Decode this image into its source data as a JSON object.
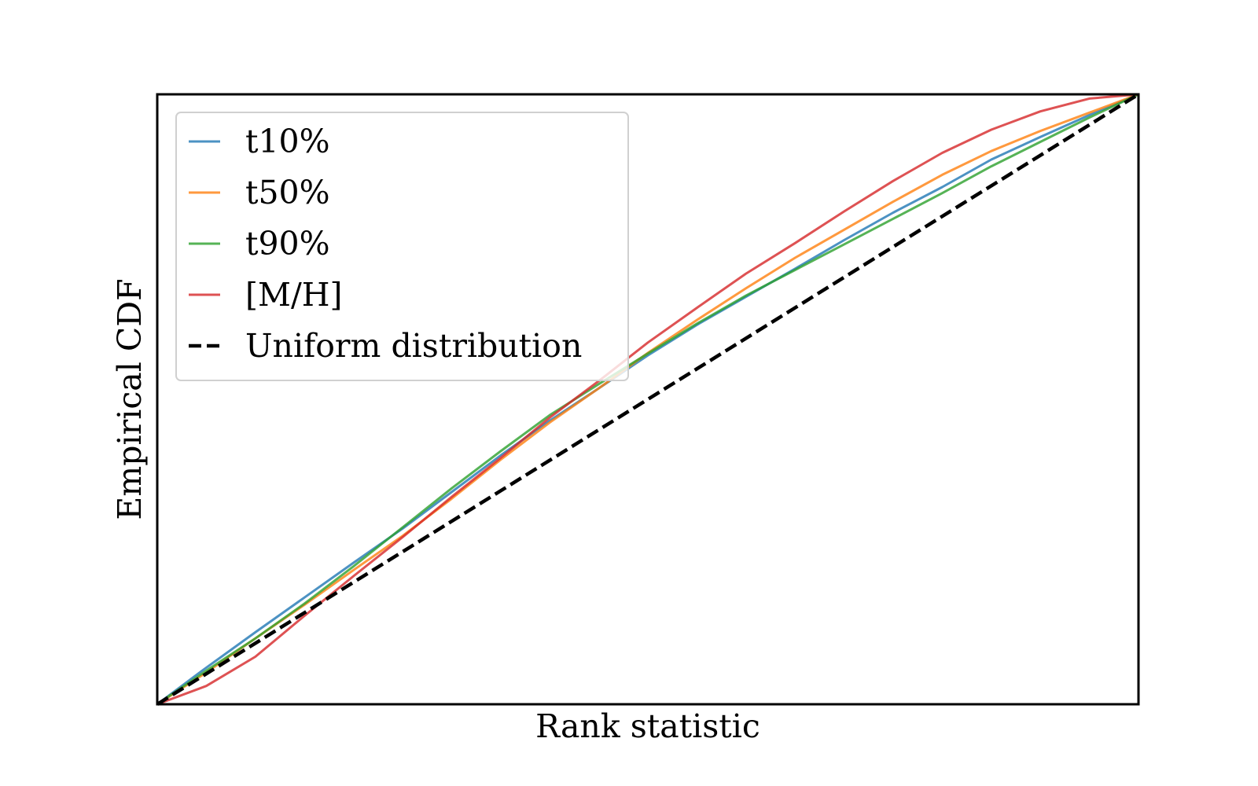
{
  "chart_data": {
    "type": "line",
    "title": "",
    "xlabel": "Rank statistic",
    "ylabel": "Empirical CDF",
    "xlim": [
      0,
      1
    ],
    "ylim": [
      0,
      1
    ],
    "grid": false,
    "ticks": false,
    "legend_position": "upper-left",
    "series": [
      {
        "name": "t10%",
        "color": "#1f77b4",
        "style": "solid",
        "x": [
          0,
          0.05,
          0.1,
          0.15,
          0.2,
          0.25,
          0.3,
          0.35,
          0.4,
          0.45,
          0.5,
          0.55,
          0.6,
          0.65,
          0.7,
          0.75,
          0.8,
          0.85,
          0.9,
          0.95,
          1.0
        ],
        "y": [
          0,
          0.06,
          0.118,
          0.175,
          0.232,
          0.288,
          0.348,
          0.408,
          0.465,
          0.518,
          0.572,
          0.622,
          0.668,
          0.714,
          0.761,
          0.806,
          0.848,
          0.893,
          0.93,
          0.966,
          1.0
        ]
      },
      {
        "name": "t50%",
        "color": "#ff7f0e",
        "style": "solid",
        "x": [
          0,
          0.05,
          0.1,
          0.15,
          0.2,
          0.25,
          0.3,
          0.35,
          0.4,
          0.45,
          0.5,
          0.55,
          0.6,
          0.65,
          0.7,
          0.75,
          0.8,
          0.85,
          0.9,
          0.95,
          1.0
        ],
        "y": [
          0,
          0.052,
          0.108,
          0.163,
          0.22,
          0.276,
          0.337,
          0.401,
          0.462,
          0.518,
          0.576,
          0.63,
          0.682,
          0.732,
          0.778,
          0.824,
          0.868,
          0.907,
          0.94,
          0.97,
          1.0
        ]
      },
      {
        "name": "t90%",
        "color": "#2ca02c",
        "style": "solid",
        "x": [
          0,
          0.05,
          0.1,
          0.15,
          0.2,
          0.25,
          0.3,
          0.35,
          0.4,
          0.45,
          0.5,
          0.55,
          0.6,
          0.65,
          0.7,
          0.75,
          0.8,
          0.85,
          0.9,
          0.95,
          1.0
        ],
        "y": [
          0,
          0.055,
          0.108,
          0.165,
          0.226,
          0.29,
          0.354,
          0.415,
          0.474,
          0.525,
          0.575,
          0.624,
          0.67,
          0.712,
          0.754,
          0.796,
          0.838,
          0.882,
          0.922,
          0.962,
          1.0
        ]
      },
      {
        "name": "[M/H]",
        "color": "#d62728",
        "style": "solid",
        "x": [
          0,
          0.05,
          0.1,
          0.15,
          0.2,
          0.25,
          0.3,
          0.35,
          0.4,
          0.45,
          0.5,
          0.55,
          0.6,
          0.65,
          0.7,
          0.75,
          0.8,
          0.85,
          0.9,
          0.95,
          1.0
        ],
        "y": [
          0,
          0.03,
          0.078,
          0.145,
          0.21,
          0.274,
          0.34,
          0.404,
          0.47,
          0.53,
          0.593,
          0.65,
          0.706,
          0.756,
          0.808,
          0.858,
          0.904,
          0.942,
          0.972,
          0.993,
          1.0
        ]
      },
      {
        "name": "Uniform distribution",
        "color": "#000000",
        "style": "dashed",
        "x": [
          0,
          1
        ],
        "y": [
          0,
          1
        ]
      }
    ]
  }
}
